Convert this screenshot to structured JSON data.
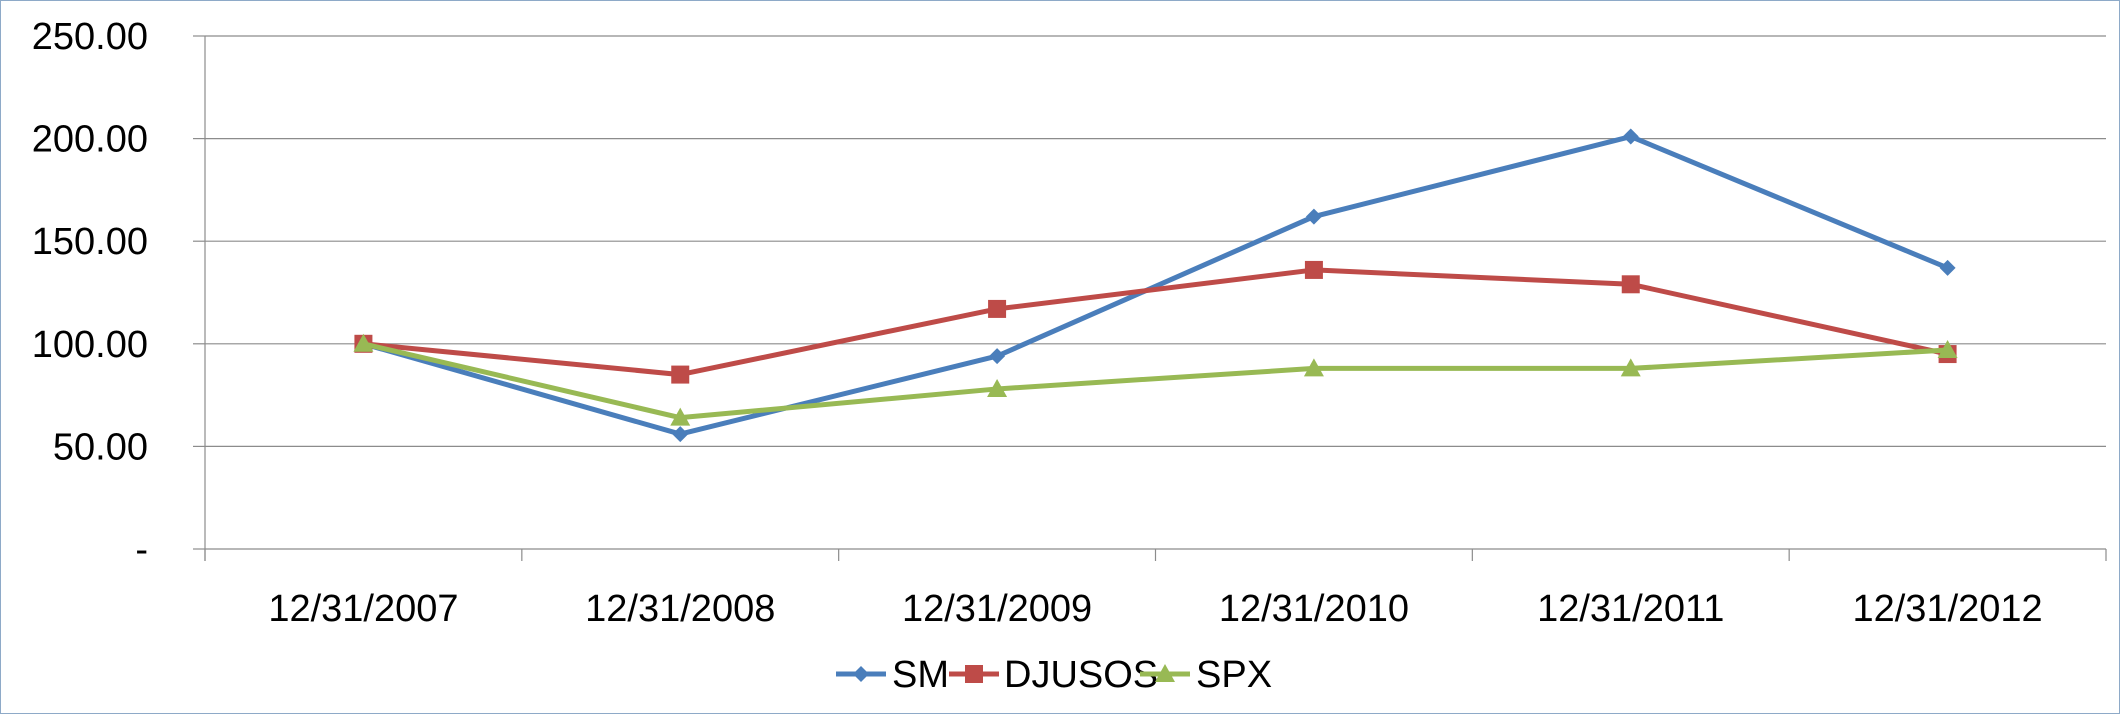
{
  "chart_data": {
    "type": "line",
    "categories": [
      "12/31/2007",
      "12/31/2008",
      "12/31/2009",
      "12/31/2010",
      "12/31/2011",
      "12/31/2012"
    ],
    "series": [
      {
        "name": "SM",
        "color": "#4a7ebb",
        "marker": "diamond",
        "values": [
          100.0,
          56.0,
          94.0,
          162.0,
          201.0,
          137.0
        ]
      },
      {
        "name": "DJUSOS",
        "color": "#be4b48",
        "marker": "square",
        "values": [
          100.0,
          85.0,
          117.0,
          136.0,
          129.0,
          95.0
        ]
      },
      {
        "name": "SPX",
        "color": "#98b954",
        "marker": "triangle",
        "values": [
          100.0,
          64.0,
          78.0,
          88.0,
          88.0,
          97.0
        ]
      }
    ],
    "y_ticks": [
      {
        "value": 0,
        "label": "-"
      },
      {
        "value": 50,
        "label": "50.00"
      },
      {
        "value": 100,
        "label": "100.00"
      },
      {
        "value": 150,
        "label": "150.00"
      },
      {
        "value": 200,
        "label": "200.00"
      },
      {
        "value": 250,
        "label": "250.00"
      }
    ],
    "ylim": [
      0,
      250
    ],
    "grid": true,
    "legend_position": "bottom",
    "title": "",
    "xlabel": "",
    "ylabel": ""
  }
}
